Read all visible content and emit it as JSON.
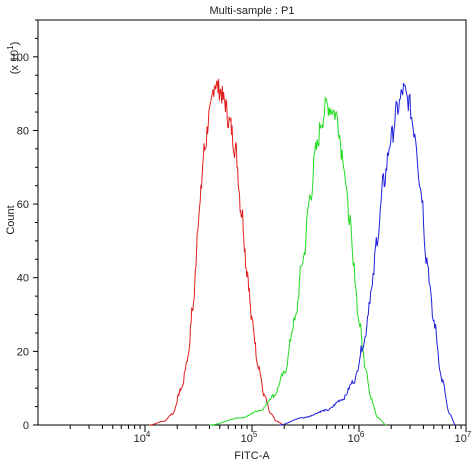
{
  "chart_data": {
    "type": "line",
    "title": "Multi-sample : P1",
    "xlabel": "FITC-A",
    "ylabel": "Count",
    "y_multiplier": "(x 10",
    "y_multiplier_exp": "1",
    "x_scale": "log",
    "xlim": [
      1000,
      10000000
    ],
    "ylim": [
      0,
      110
    ],
    "x_ticks": [
      {
        "value": 10000,
        "base": "10",
        "exp": "4"
      },
      {
        "value": 100000,
        "base": "10",
        "exp": "5"
      },
      {
        "value": 1000000,
        "base": "10",
        "exp": "6"
      },
      {
        "value": 10000000,
        "base": "10",
        "exp": "7"
      }
    ],
    "y_ticks": [
      0,
      20,
      40,
      60,
      80,
      100
    ],
    "grid": false,
    "series": [
      {
        "color": "#e02020",
        "points": [
          [
            11000,
            0
          ],
          [
            15000,
            1
          ],
          [
            18000,
            3
          ],
          [
            22000,
            10
          ],
          [
            25000,
            18
          ],
          [
            28000,
            32
          ],
          [
            32000,
            58
          ],
          [
            36000,
            75
          ],
          [
            40000,
            84
          ],
          [
            45000,
            93
          ],
          [
            50000,
            91
          ],
          [
            55000,
            88
          ],
          [
            62000,
            82
          ],
          [
            70000,
            75
          ],
          [
            80000,
            58
          ],
          [
            90000,
            42
          ],
          [
            100000,
            28
          ],
          [
            115000,
            16
          ],
          [
            130000,
            8
          ],
          [
            150000,
            3
          ],
          [
            170000,
            1
          ],
          [
            200000,
            0
          ]
        ]
      },
      {
        "color": "#22dd22",
        "points": [
          [
            40000,
            0
          ],
          [
            80000,
            2
          ],
          [
            120000,
            4
          ],
          [
            160000,
            8
          ],
          [
            200000,
            14
          ],
          [
            250000,
            28
          ],
          [
            300000,
            45
          ],
          [
            350000,
            62
          ],
          [
            400000,
            75
          ],
          [
            450000,
            83
          ],
          [
            500000,
            87
          ],
          [
            550000,
            86
          ],
          [
            620000,
            84
          ],
          [
            700000,
            74
          ],
          [
            800000,
            58
          ],
          [
            900000,
            42
          ],
          [
            1000000,
            28
          ],
          [
            1150000,
            16
          ],
          [
            1300000,
            7
          ],
          [
            1500000,
            2
          ],
          [
            1800000,
            0
          ]
        ]
      },
      {
        "color": "#2020dd",
        "points": [
          [
            180000,
            0
          ],
          [
            300000,
            2
          ],
          [
            500000,
            4
          ],
          [
            700000,
            7
          ],
          [
            900000,
            12
          ],
          [
            1100000,
            22
          ],
          [
            1300000,
            36
          ],
          [
            1500000,
            52
          ],
          [
            1700000,
            66
          ],
          [
            2000000,
            78
          ],
          [
            2300000,
            86
          ],
          [
            2600000,
            91
          ],
          [
            2900000,
            88
          ],
          [
            3300000,
            80
          ],
          [
            3800000,
            64
          ],
          [
            4300000,
            45
          ],
          [
            5000000,
            28
          ],
          [
            6000000,
            12
          ],
          [
            7000000,
            3
          ],
          [
            8000000,
            0
          ]
        ]
      }
    ]
  }
}
